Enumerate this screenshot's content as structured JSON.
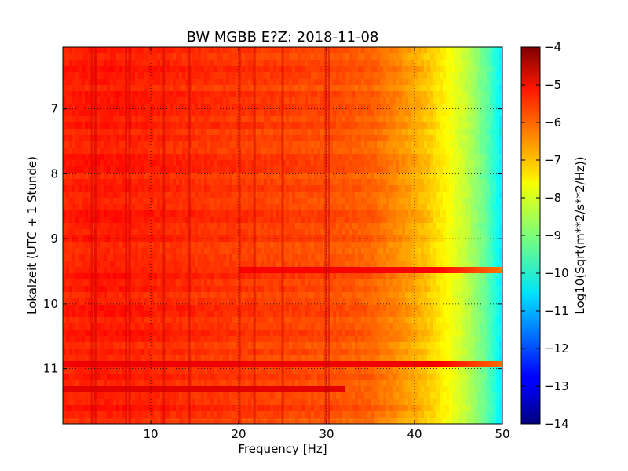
{
  "chart_data": {
    "type": "heatmap",
    "title": "BW MGBB E?Z: 2018-11-08",
    "xlabel": "Frequency [Hz]",
    "ylabel": "Lokalzeit (UTC + 1 Stunde)",
    "colorbar_label": "Log10(Sqrt(m**2/s**2/Hz))",
    "xlim": [
      0,
      50
    ],
    "ylim": [
      11.85,
      6.05
    ],
    "y_inverted": true,
    "x_ticks": [
      10,
      20,
      30,
      40,
      50
    ],
    "x_tick_labels": [
      "10",
      "20",
      "30",
      "40",
      "50"
    ],
    "y_ticks": [
      7,
      8,
      9,
      10,
      11
    ],
    "y_tick_labels": [
      "7",
      "8",
      "9",
      "10",
      "11"
    ],
    "grid": true,
    "colormap": "jet",
    "color_range": [
      -14,
      -4
    ],
    "colorbar_ticks": [
      -4,
      -5,
      -6,
      -7,
      -8,
      -9,
      -10,
      -11,
      -12,
      -13,
      -14
    ],
    "colorbar_tick_labels": [
      "−4",
      "−5",
      "−6",
      "−7",
      "−8",
      "−9",
      "−10",
      "−11",
      "−12",
      "−13",
      "−14"
    ],
    "spectrum_profile": {
      "frequency": [
        0,
        5,
        10,
        20,
        30,
        35,
        38,
        40,
        42,
        44,
        46,
        48,
        50
      ],
      "log10_amplitude": [
        -5.6,
        -5.5,
        -5.6,
        -5.8,
        -6.0,
        -6.2,
        -6.6,
        -6.9,
        -7.3,
        -7.8,
        -8.4,
        -9.2,
        -10.4
      ]
    },
    "spectral_lines_hz": [
      3.3,
      3.7,
      7.2,
      7.6,
      11.5,
      14.4,
      20.1,
      21.8,
      25.0,
      29.9,
      30.3
    ],
    "events": [
      {
        "time": 9.45,
        "freq_range": [
          20,
          50
        ],
        "log10_amplitude": -5.2
      },
      {
        "time": 11.3,
        "freq_range": [
          0,
          32
        ],
        "log10_amplitude": -5.0
      },
      {
        "time": 10.95,
        "freq_range": [
          0,
          50
        ],
        "log10_amplitude": -5.1
      }
    ]
  }
}
